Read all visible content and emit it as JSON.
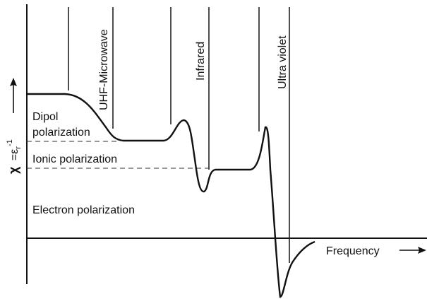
{
  "diagram": {
    "y_label": {
      "symbol": "χ",
      "equals": "=ε",
      "subscript": "r",
      "superscript": "-1"
    },
    "x_label": "Frequency",
    "regions": [
      "UHF-Microwave",
      "Infrared",
      "Ultra violet"
    ],
    "mechanisms": {
      "dipol": [
        "Dipol",
        "polarization"
      ],
      "ionic": "Ionic polarization",
      "electron": "Electron polarization"
    }
  }
}
